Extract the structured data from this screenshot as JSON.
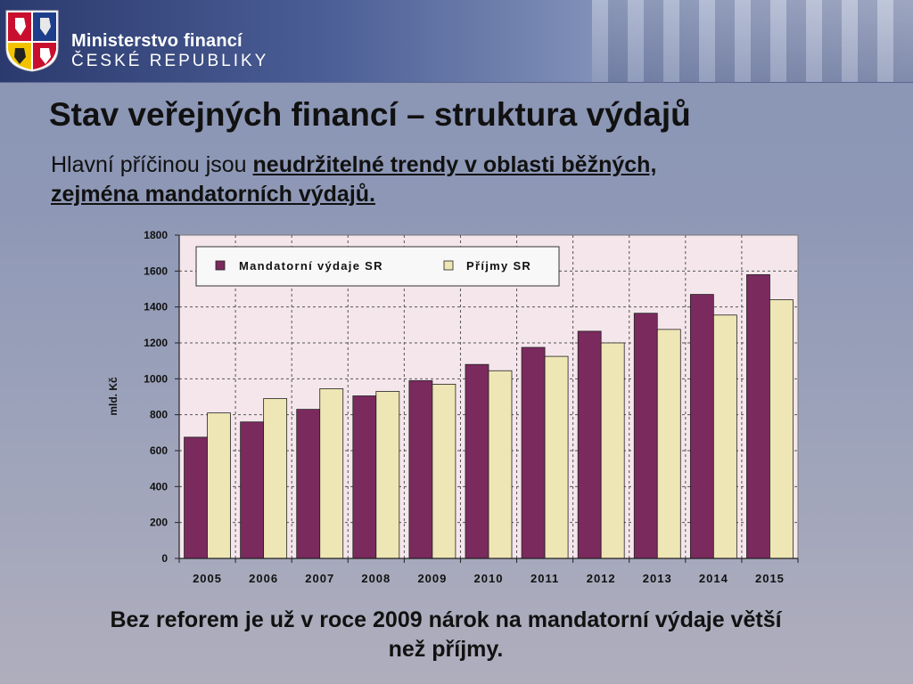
{
  "header": {
    "ministry_name": "Ministerstvo financí",
    "ministry_subtitle": "ČESKÉ REPUBLIKY",
    "crest_icon": "czech-coat-of-arms-icon"
  },
  "slide": {
    "title": "Stav veřejných financí – struktura výdajů",
    "subtitle_plain": "Hlavní příčinou jsou ",
    "subtitle_emphasis_1": "neudržitelné trendy v oblasti běžných,",
    "subtitle_emphasis_2": "zejména mandatorních výdajů.",
    "conclusion_line1": "Bez reforem je už v roce 2009 nárok na mandatorní výdaje větší",
    "conclusion_line2": "než příjmy."
  },
  "colors": {
    "series_mandatory": "#7b2a5e",
    "series_revenue": "#efe6b5",
    "plot_bg": "#f5e6ec"
  },
  "chart_data": {
    "type": "bar",
    "categories": [
      "2005",
      "2006",
      "2007",
      "2008",
      "2009",
      "2010",
      "2011",
      "2012",
      "2013",
      "2014",
      "2015"
    ],
    "series": [
      {
        "name": "Mandatorní výdaje SR",
        "values": [
          675,
          760,
          830,
          905,
          990,
          1080,
          1175,
          1265,
          1365,
          1470,
          1580
        ]
      },
      {
        "name": "Příjmy SR",
        "values": [
          810,
          890,
          945,
          930,
          970,
          1045,
          1125,
          1200,
          1275,
          1355,
          1440
        ]
      }
    ],
    "ylabel": "mld. Kč",
    "ylim": [
      0,
      1800
    ],
    "yticks": [
      "0",
      "200",
      "400",
      "600",
      "800",
      "1000",
      "1200",
      "1400",
      "1600",
      "1800"
    ],
    "grid": true,
    "legend_position": "top-left"
  }
}
